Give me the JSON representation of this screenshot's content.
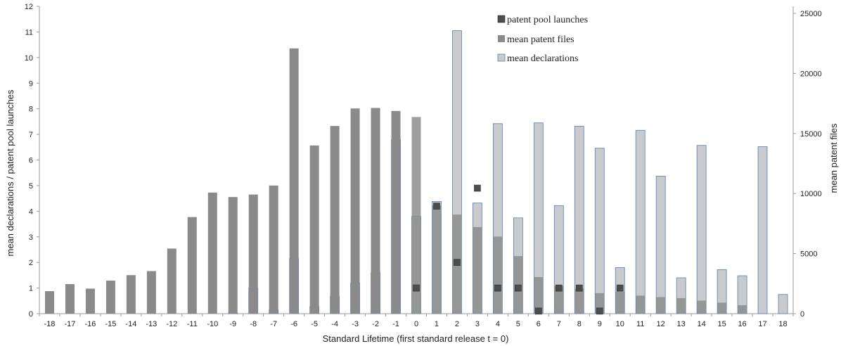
{
  "chart_data": {
    "type": "bar",
    "xlabel": "Standard Lifetime (first standard release t = 0)",
    "ylabel_left": "mean declarations / patent pool launches",
    "ylabel_right": "mean patent files",
    "ylim_left": [
      0,
      12
    ],
    "ylim_right": [
      0,
      25000
    ],
    "yticks_left": [
      "0",
      "1",
      "2",
      "3",
      "4",
      "5",
      "6",
      "7",
      "8",
      "9",
      "10",
      "11",
      "12"
    ],
    "yticks_right": [
      "0",
      "5000",
      "10000",
      "15000",
      "20000",
      "25000"
    ],
    "categories": [
      "-18",
      "-17",
      "-16",
      "-15",
      "-14",
      "-13",
      "-12",
      "-11",
      "-10",
      "-9",
      "-8",
      "-7",
      "-6",
      "-5",
      "-4",
      "-3",
      "-2",
      "-1",
      "0",
      "1",
      "2",
      "3",
      "4",
      "5",
      "6",
      "7",
      "8",
      "9",
      "10",
      "11",
      "12",
      "13",
      "14",
      "15",
      "16",
      "17",
      "18"
    ],
    "legend_position": "top-center",
    "series": [
      {
        "name": "mean declarations",
        "axis": "left",
        "color": "#c8cacd",
        "values": [
          0,
          0,
          0,
          0,
          0,
          0,
          0,
          0,
          0,
          0.02,
          1.0,
          0.15,
          2.15,
          0.28,
          0.68,
          1.2,
          1.6,
          6.8,
          3.8,
          4.38,
          11.05,
          4.32,
          7.42,
          3.74,
          7.45,
          4.22,
          7.32,
          6.46,
          1.8,
          7.16,
          5.37,
          1.4,
          6.57,
          1.72,
          1.48,
          6.52,
          0.75
        ]
      },
      {
        "name": "mean patent files",
        "axis": "right",
        "color": "#8a8a8a",
        "values": [
          1875,
          2458,
          2083,
          2750,
          3208,
          3542,
          5417,
          8042,
          10083,
          9708,
          9917,
          10667,
          22083,
          14000,
          15625,
          17083,
          17125,
          16875,
          16375,
          9000,
          8250,
          7208,
          6417,
          4792,
          3042,
          2292,
          2083,
          1708,
          1833,
          1500,
          1375,
          1292,
          1083,
          917,
          708,
          0,
          0
        ]
      },
      {
        "name": "patent pool launches",
        "axis": "left",
        "color": "#4d4d4d",
        "values": [
          0,
          0,
          0,
          0,
          0,
          0,
          0,
          0,
          0,
          0,
          0,
          0,
          0,
          0,
          0,
          0,
          0,
          0,
          1,
          4.2,
          2,
          4.9,
          1,
          1,
          0.1,
          1,
          1,
          0.1,
          1,
          0,
          0,
          0,
          0,
          0,
          0,
          0,
          0
        ]
      }
    ]
  }
}
